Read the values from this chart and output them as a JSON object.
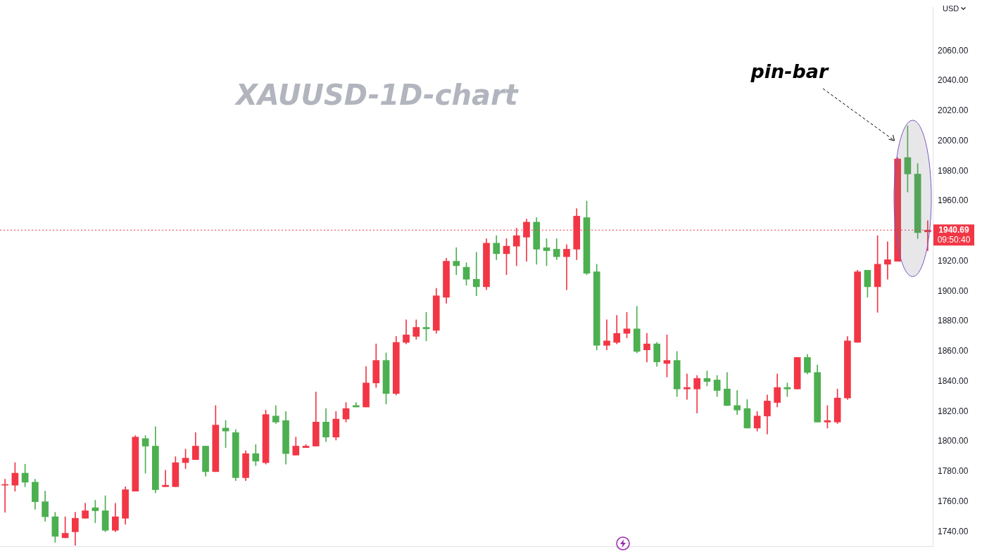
{
  "chart_data": {
    "type": "candlestick",
    "title": "XAUUSD-1D-chart",
    "ylabel": "USD",
    "categories": [
      null,
      null,
      null,
      null,
      null,
      null,
      null,
      null,
      null,
      null,
      null,
      null,
      null,
      null,
      null,
      null,
      null,
      null,
      null,
      null,
      null,
      null,
      null,
      null,
      null,
      null,
      null,
      null,
      null,
      null,
      null,
      null,
      null,
      null,
      null,
      null,
      null,
      null,
      null,
      null,
      null,
      null,
      null,
      null,
      null,
      null,
      null,
      null,
      null,
      null,
      null,
      null,
      null,
      null,
      null,
      null,
      null,
      null,
      null,
      null,
      null,
      null,
      null,
      null,
      null,
      null,
      null,
      null,
      null,
      null,
      null,
      null,
      null,
      null,
      null,
      null,
      null,
      null,
      null,
      null,
      null,
      null,
      null,
      null,
      null,
      null,
      null,
      null,
      null,
      null,
      null,
      null,
      null
    ],
    "ohlc": [
      [
        1771,
        1775,
        1753,
        1771.5
      ],
      [
        1771,
        1786,
        1767,
        1779
      ],
      [
        1779,
        1785,
        1770,
        1773
      ],
      [
        1773,
        1775,
        1755,
        1760
      ],
      [
        1760,
        1767,
        1747,
        1750
      ],
      [
        1750,
        1753,
        1733,
        1737
      ],
      [
        1736,
        1750,
        1736,
        1739
      ],
      [
        1740,
        1753,
        1731,
        1749
      ],
      [
        1749,
        1759,
        1749,
        1754
      ],
      [
        1756,
        1761,
        1746,
        1754
      ],
      [
        1754,
        1764,
        1740,
        1741
      ],
      [
        1741,
        1759,
        1740,
        1750
      ],
      [
        1749,
        1770,
        1745,
        1768
      ],
      [
        1767,
        1804,
        1767,
        1803
      ],
      [
        1802,
        1804,
        1779,
        1797
      ],
      [
        1797,
        1810,
        1766,
        1768
      ],
      [
        1770,
        1781,
        1770,
        1771
      ],
      [
        1770,
        1790,
        1770,
        1786
      ],
      [
        1786,
        1795,
        1782,
        1789
      ],
      [
        1788,
        1806,
        1788,
        1797
      ],
      [
        1797,
        1797,
        1777,
        1780
      ],
      [
        1780,
        1824,
        1780,
        1811
      ],
      [
        1809,
        1814,
        1796,
        1807
      ],
      [
        1806,
        1808,
        1774,
        1776
      ],
      [
        1776,
        1794,
        1774,
        1792
      ],
      [
        1792,
        1798,
        1784,
        1787
      ],
      [
        1786,
        1821,
        1785,
        1818
      ],
      [
        1817,
        1824,
        1812,
        1813
      ],
      [
        1814,
        1820,
        1785,
        1792
      ],
      [
        1791,
        1803,
        1791,
        1797
      ],
      [
        1796,
        1798,
        1796,
        1797
      ],
      [
        1797,
        1833,
        1797,
        1813
      ],
      [
        1813,
        1822,
        1800,
        1803
      ],
      [
        1803,
        1820,
        1801,
        1815
      ],
      [
        1815,
        1826,
        1813,
        1822
      ],
      [
        1824,
        1826,
        1823,
        1823
      ],
      [
        1823,
        1850,
        1823,
        1839
      ],
      [
        1839,
        1865,
        1836,
        1854
      ],
      [
        1854,
        1859,
        1825,
        1832
      ],
      [
        1832,
        1870,
        1831,
        1866
      ],
      [
        1866,
        1881,
        1865,
        1871
      ],
      [
        1870,
        1881,
        1868,
        1876
      ],
      [
        1876,
        1886,
        1867,
        1875
      ],
      [
        1874,
        1902,
        1872,
        1897
      ],
      [
        1896,
        1922,
        1892,
        1920
      ],
      [
        1920,
        1929,
        1911,
        1917
      ],
      [
        1916,
        1919,
        1904,
        1908
      ],
      [
        1908,
        1926,
        1897,
        1903
      ],
      [
        1903,
        1935,
        1901,
        1932
      ],
      [
        1932,
        1937,
        1921,
        1925
      ],
      [
        1925,
        1935,
        1911,
        1930
      ],
      [
        1930,
        1942,
        1917,
        1937
      ],
      [
        1936,
        1948,
        1920,
        1946
      ],
      [
        1946,
        1949,
        1918,
        1928
      ],
      [
        1929,
        1935,
        1917,
        1927
      ],
      [
        1928,
        1935,
        1921,
        1923
      ],
      [
        1923,
        1931,
        1901,
        1928
      ],
      [
        1928,
        1955,
        1921,
        1950
      ],
      [
        1949,
        1960,
        1911,
        1912
      ],
      [
        1913,
        1918,
        1861,
        1864
      ],
      [
        1864,
        1881,
        1861,
        1867
      ],
      [
        1866,
        1884,
        1865,
        1872
      ],
      [
        1872,
        1886,
        1869,
        1875
      ],
      [
        1875,
        1890,
        1859,
        1860
      ],
      [
        1861,
        1872,
        1853,
        1865
      ],
      [
        1865,
        1866,
        1850,
        1853
      ],
      [
        1852,
        1871,
        1843,
        1854
      ],
      [
        1854,
        1860,
        1830,
        1835
      ],
      [
        1835,
        1845,
        1828,
        1836
      ],
      [
        1835,
        1844,
        1819,
        1842
      ],
      [
        1842,
        1847,
        1837,
        1840
      ],
      [
        1841,
        1844,
        1830,
        1834
      ],
      [
        1835,
        1846,
        1824,
        1824
      ],
      [
        1824,
        1834,
        1818,
        1821
      ],
      [
        1822,
        1828,
        1809,
        1809
      ],
      [
        1809,
        1820,
        1807,
        1817
      ],
      [
        1817,
        1831,
        1805,
        1827
      ],
      [
        1826,
        1845,
        1823,
        1836
      ],
      [
        1836,
        1839,
        1830,
        1835
      ],
      [
        1835,
        1856,
        1835,
        1856
      ],
      [
        1856,
        1858,
        1845,
        1846
      ],
      [
        1846,
        1851,
        1813,
        1813
      ],
      [
        1813,
        1824,
        1809,
        1814
      ],
      [
        1813,
        1835,
        1812,
        1829
      ],
      [
        1829,
        1870,
        1828,
        1867
      ],
      [
        1866,
        1914,
        1866,
        1913
      ],
      [
        1914,
        1914,
        1896,
        1903
      ],
      [
        1903,
        1937,
        1886,
        1918
      ],
      [
        1918,
        1933,
        1908,
        1921
      ],
      [
        1920,
        1989,
        1920,
        1988
      ],
      [
        1989,
        2010,
        1966,
        1978
      ],
      [
        1978,
        1985,
        1935,
        1939
      ],
      [
        1939.5,
        1947,
        1927,
        1940.69
      ]
    ],
    "colors": [
      "#f23645",
      "#f23645",
      "#4caf50",
      "#4caf50",
      "#4caf50",
      "#4caf50",
      "#f23645",
      "#f23645",
      "#f23645",
      "#4caf50",
      "#4caf50",
      "#f23645",
      "#f23645",
      "#f23645",
      "#4caf50",
      "#4caf50",
      "#f23645",
      "#f23645",
      "#f23645",
      "#f23645",
      "#4caf50",
      "#f23645",
      "#4caf50",
      "#4caf50",
      "#f23645",
      "#4caf50",
      "#f23645",
      "#4caf50",
      "#4caf50",
      "#f23645",
      "#f23645",
      "#f23645",
      "#4caf50",
      "#f23645",
      "#f23645",
      "#4caf50",
      "#f23645",
      "#f23645",
      "#4caf50",
      "#f23645",
      "#f23645",
      "#f23645",
      "#4caf50",
      "#f23645",
      "#f23645",
      "#4caf50",
      "#4caf50",
      "#4caf50",
      "#f23645",
      "#4caf50",
      "#f23645",
      "#f23645",
      "#f23645",
      "#4caf50",
      "#4caf50",
      "#4caf50",
      "#f23645",
      "#f23645",
      "#4caf50",
      "#4caf50",
      "#f23645",
      "#f23645",
      "#f23645",
      "#4caf50",
      "#f23645",
      "#4caf50",
      "#f23645",
      "#4caf50",
      "#f23645",
      "#f23645",
      "#4caf50",
      "#4caf50",
      "#4caf50",
      "#4caf50",
      "#4caf50",
      "#f23645",
      "#f23645",
      "#f23645",
      "#4caf50",
      "#f23645",
      "#4caf50",
      "#4caf50",
      "#f23645",
      "#f23645",
      "#f23645",
      "#f23645",
      "#4caf50",
      "#f23645",
      "#f23645",
      "#f23645",
      "#4caf50",
      "#4caf50",
      "#f23645"
    ],
    "ylim": [
      1730,
      2089
    ],
    "yticks": [
      {
        "value": 1740,
        "label": "1740.00"
      },
      {
        "value": 1760,
        "label": "1760.00"
      },
      {
        "value": 1780,
        "label": "1780.00"
      },
      {
        "value": 1800,
        "label": "1800.00"
      },
      {
        "value": 1820,
        "label": "1820.00"
      },
      {
        "value": 1840,
        "label": "1840.00"
      },
      {
        "value": 1860,
        "label": "1860.00"
      },
      {
        "value": 1880,
        "label": "1880.00"
      },
      {
        "value": 1900,
        "label": "1900.00"
      },
      {
        "value": 1920,
        "label": "1920.00"
      },
      {
        "value": 1960,
        "label": "1960.00"
      },
      {
        "value": 1980,
        "label": "1980.00"
      },
      {
        "value": 2000,
        "label": "2000.00"
      },
      {
        "value": 2020,
        "label": "2020.00"
      },
      {
        "value": 2040,
        "label": "2040.00"
      },
      {
        "value": 2060,
        "label": "2060.00"
      }
    ],
    "ref_lines": [
      {
        "axis": "y",
        "value": 1940.69,
        "label": "1940.69",
        "color": "#f23645",
        "line_style": "dotted"
      }
    ],
    "annotations": [
      "pin-bar",
      "09:50:40"
    ],
    "grid": false,
    "legend": false
  }
}
